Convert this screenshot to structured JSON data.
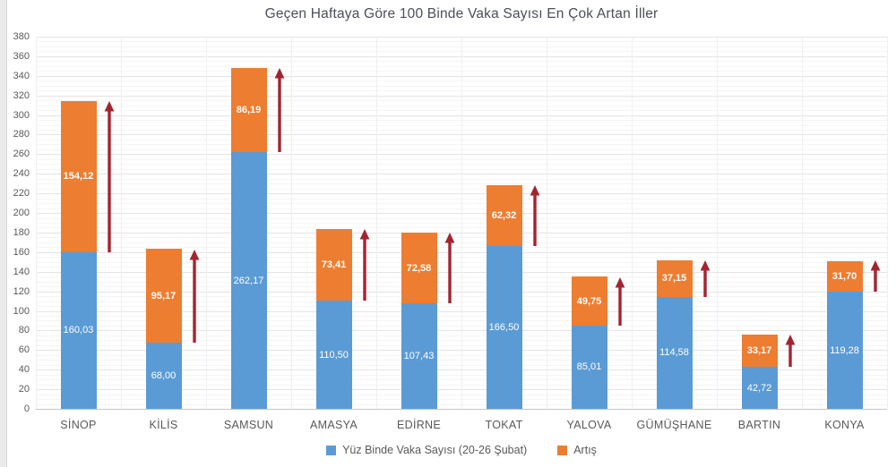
{
  "title": "Geçen Haftaya Göre 100 Binde Vaka Sayısı En Çok Artan İller",
  "legend": [
    {
      "label": "Yüz Binde Vaka Sayısı (20-26 Şubat)",
      "color": "#5B9BD5"
    },
    {
      "label": "Artış",
      "color": "#ED7D31"
    }
  ],
  "chart_data": {
    "type": "bar",
    "stacked": true,
    "title": "Geçen Haftaya Göre 100 Binde Vaka Sayısı En Çok Artan İller",
    "categories": [
      "SİNOP",
      "KİLİS",
      "SAMSUN",
      "AMASYA",
      "EDİRNE",
      "TOKAT",
      "YALOVA",
      "GÜMÜŞHANE",
      "BARTIN",
      "KONYA"
    ],
    "series": [
      {
        "name": "Yüz Binde Vaka Sayısı (20-26 Şubat)",
        "color": "#5B9BD5",
        "values": [
          160.03,
          68.0,
          262.17,
          110.5,
          107.43,
          166.5,
          85.01,
          114.58,
          42.72,
          119.28
        ],
        "labels": [
          "160,03",
          "68,00",
          "262,17",
          "110,50",
          "107,43",
          "166,50",
          "85,01",
          "114,58",
          "42,72",
          "119,28"
        ]
      },
      {
        "name": "Artış",
        "color": "#ED7D31",
        "values": [
          154.12,
          95.17,
          86.19,
          73.41,
          72.58,
          62.32,
          49.75,
          37.15,
          33.17,
          31.7
        ],
        "labels": [
          "154,12",
          "95,17",
          "86,19",
          "73,41",
          "72,58",
          "62,32",
          "49,75",
          "37,15",
          "33,17",
          "31,70"
        ]
      }
    ],
    "totals": [
      314.15,
      163.17,
      348.36,
      183.91,
      180.01,
      228.82,
      134.76,
      151.73,
      75.89,
      150.98
    ],
    "ylim": [
      0,
      380
    ],
    "ytick_step": 20,
    "ytick_labels": [
      "0",
      "20",
      "40",
      "60",
      "80",
      "100",
      "120",
      "140",
      "160",
      "180",
      "200",
      "220",
      "240",
      "260",
      "280",
      "300",
      "320",
      "340",
      "360",
      "380"
    ],
    "grid": true,
    "legend_position": "bottom",
    "annotations": {
      "increase_arrow_color": "#A32430",
      "increase_arrow_note": "dark red upward arrow beside each bar spanning the Artış segment"
    }
  }
}
